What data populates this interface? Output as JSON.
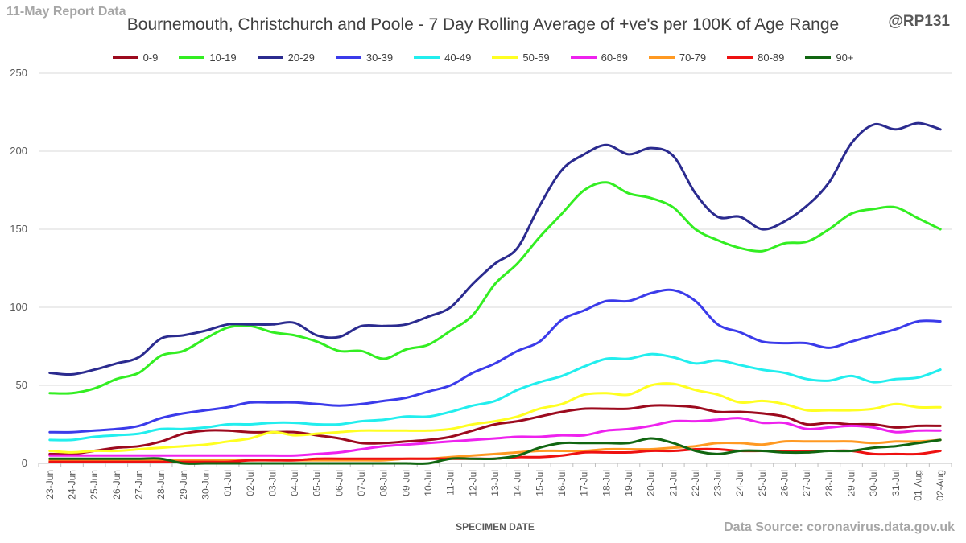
{
  "header": {
    "report_label": "11-May Report Data",
    "handle": "@RP131",
    "source": "Data Source: coronavirus.data.gov.uk"
  },
  "chart_data": {
    "type": "line",
    "title": "Bournemouth, Christchurch and Poole - 7 Day Rolling Average of +ve's per 100K of Age Range",
    "xlabel": "SPECIMEN DATE",
    "ylabel": "",
    "ylim": [
      0,
      250
    ],
    "yticks": [
      0,
      50,
      100,
      150,
      200,
      250
    ],
    "grid": true,
    "legend_position": "top",
    "categories": [
      "23-Jun",
      "24-Jun",
      "25-Jun",
      "26-Jun",
      "27-Jun",
      "28-Jun",
      "29-Jun",
      "30-Jun",
      "01-Jul",
      "02-Jul",
      "03-Jul",
      "04-Jul",
      "05-Jul",
      "06-Jul",
      "07-Jul",
      "08-Jul",
      "09-Jul",
      "10-Jul",
      "11-Jul",
      "12-Jul",
      "13-Jul",
      "14-Jul",
      "15-Jul",
      "16-Jul",
      "17-Jul",
      "18-Jul",
      "19-Jul",
      "20-Jul",
      "21-Jul",
      "22-Jul",
      "23-Jul",
      "24-Jul",
      "25-Jul",
      "26-Jul",
      "27-Jul",
      "28-Jul",
      "29-Jul",
      "30-Jul",
      "31-Jul",
      "01-Aug",
      "02-Aug"
    ],
    "series": [
      {
        "name": "0-9",
        "color": "#9c0a1e",
        "values": [
          6,
          6,
          8,
          10,
          11,
          14,
          19,
          21,
          21,
          20,
          20,
          20,
          18,
          16,
          13,
          13,
          14,
          15,
          17,
          21,
          25,
          27,
          30,
          33,
          35,
          35,
          35,
          37,
          37,
          36,
          33,
          33,
          32,
          30,
          25,
          26,
          25,
          25,
          23,
          24,
          24
        ]
      },
      {
        "name": "10-19",
        "color": "#33ee22",
        "values": [
          45,
          45,
          48,
          54,
          58,
          69,
          72,
          80,
          87,
          88,
          84,
          82,
          78,
          72,
          72,
          67,
          73,
          76,
          85,
          95,
          115,
          128,
          145,
          160,
          175,
          180,
          173,
          170,
          164,
          150,
          143,
          138,
          136,
          141,
          142,
          150,
          160,
          163,
          164,
          157,
          150
        ]
      },
      {
        "name": "20-29",
        "color": "#2b2b8f",
        "values": [
          58,
          57,
          60,
          64,
          68,
          80,
          82,
          85,
          89,
          89,
          89,
          90,
          82,
          81,
          88,
          88,
          89,
          94,
          100,
          115,
          128,
          138,
          165,
          188,
          198,
          204,
          198,
          202,
          197,
          173,
          158,
          158,
          150,
          155,
          165,
          180,
          205,
          217,
          214,
          218,
          214
        ]
      },
      {
        "name": "30-39",
        "color": "#3b3bea",
        "values": [
          20,
          20,
          21,
          22,
          24,
          29,
          32,
          34,
          36,
          39,
          39,
          39,
          38,
          37,
          38,
          40,
          42,
          46,
          50,
          58,
          64,
          72,
          78,
          92,
          98,
          104,
          104,
          109,
          111,
          104,
          89,
          84,
          78,
          77,
          77,
          74,
          78,
          82,
          86,
          91,
          91
        ]
      },
      {
        "name": "40-49",
        "color": "#22eeee",
        "values": [
          15,
          15,
          17,
          18,
          19,
          22,
          22,
          23,
          25,
          25,
          26,
          26,
          25,
          25,
          27,
          28,
          30,
          30,
          33,
          37,
          40,
          47,
          52,
          56,
          62,
          67,
          67,
          70,
          68,
          64,
          66,
          63,
          60,
          58,
          54,
          53,
          56,
          52,
          54,
          55,
          60
        ]
      },
      {
        "name": "50-59",
        "color": "#ffff22",
        "values": [
          8,
          7,
          8,
          8,
          9,
          10,
          11,
          12,
          14,
          16,
          20,
          18,
          19,
          20,
          21,
          21,
          21,
          21,
          22,
          25,
          27,
          30,
          35,
          38,
          44,
          45,
          44,
          50,
          51,
          47,
          44,
          39,
          40,
          38,
          34,
          34,
          34,
          35,
          38,
          36,
          36
        ]
      },
      {
        "name": "60-69",
        "color": "#ee22ee",
        "values": [
          5,
          5,
          5,
          5,
          5,
          5,
          5,
          5,
          5,
          5,
          5,
          5,
          6,
          7,
          9,
          11,
          12,
          13,
          14,
          15,
          16,
          17,
          17,
          18,
          18,
          21,
          22,
          24,
          27,
          27,
          28,
          29,
          26,
          26,
          22,
          23,
          24,
          23,
          20,
          21,
          21
        ]
      },
      {
        "name": "70-79",
        "color": "#ff9922",
        "values": [
          2,
          2,
          2,
          2,
          2,
          2,
          2,
          2,
          2,
          2,
          2,
          2,
          2,
          2,
          2,
          2,
          3,
          3,
          4,
          5,
          6,
          7,
          8,
          8,
          8,
          9,
          9,
          9,
          10,
          11,
          13,
          13,
          12,
          14,
          14,
          14,
          14,
          13,
          14,
          14,
          15
        ]
      },
      {
        "name": "80-89",
        "color": "#ee1111",
        "values": [
          1,
          1,
          1,
          1,
          1,
          1,
          1,
          1,
          1,
          2,
          2,
          2,
          3,
          3,
          3,
          3,
          3,
          3,
          3,
          3,
          3,
          4,
          4,
          5,
          7,
          7,
          7,
          8,
          8,
          9,
          9,
          8,
          8,
          8,
          8,
          8,
          8,
          6,
          6,
          6,
          8
        ]
      },
      {
        "name": "90+",
        "color": "#116611",
        "values": [
          3,
          3,
          3,
          3,
          3,
          3,
          0,
          0,
          0,
          0,
          0,
          0,
          0,
          0,
          0,
          0,
          0,
          0,
          3,
          3,
          3,
          5,
          10,
          13,
          13,
          13,
          13,
          16,
          13,
          8,
          6,
          8,
          8,
          7,
          7,
          8,
          8,
          10,
          11,
          13,
          15
        ]
      }
    ]
  }
}
